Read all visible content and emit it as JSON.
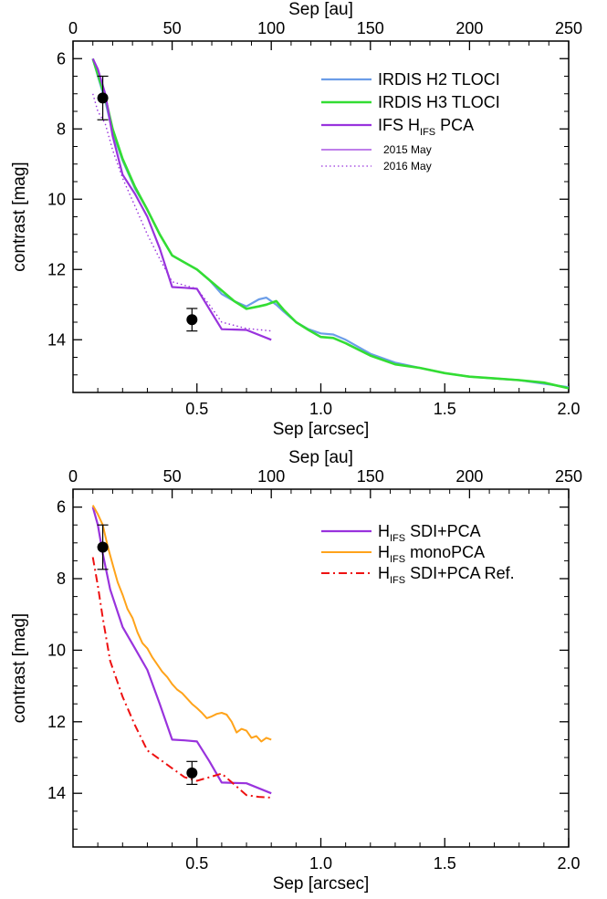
{
  "chart_data": [
    {
      "type": "line",
      "xlabel": "Sep [arcsec]",
      "ylabel": "contrast [mag]",
      "top_axis_label": "Sep [au]",
      "xlim": [
        0.0,
        2.0
      ],
      "ylim": [
        15.5,
        5.5
      ],
      "top_xlim": [
        0,
        250
      ],
      "x_ticks": [
        {
          "v": 0.5,
          "t": "0.5"
        },
        {
          "v": 1.0,
          "t": "1.0"
        },
        {
          "v": 1.5,
          "t": "1.5"
        },
        {
          "v": 2.0,
          "t": "2.0"
        }
      ],
      "top_ticks": [
        {
          "v": 0,
          "t": "0"
        },
        {
          "v": 50,
          "t": "50"
        },
        {
          "v": 100,
          "t": "100"
        },
        {
          "v": 150,
          "t": "150"
        },
        {
          "v": 200,
          "t": "200"
        },
        {
          "v": 250,
          "t": "250"
        }
      ],
      "y_ticks": [
        {
          "v": 6,
          "t": "6"
        },
        {
          "v": 8,
          "t": "8"
        },
        {
          "v": 10,
          "t": "10"
        },
        {
          "v": 12,
          "t": "12"
        },
        {
          "v": 14,
          "t": "14"
        }
      ],
      "legend_position": "top-right",
      "series": [
        {
          "name": "IRDIS H2 TLOCI",
          "legend": {
            "main": "IRDIS H2 TLOCI",
            "sub": "",
            "tail": ""
          },
          "color": "#6b9de8",
          "dash": "solid",
          "width": 2.2,
          "legend_size": "big",
          "points": [
            [
              0.08,
              6.0
            ],
            [
              0.1,
              6.5
            ],
            [
              0.13,
              7.2
            ],
            [
              0.16,
              8.1
            ],
            [
              0.2,
              8.9
            ],
            [
              0.25,
              9.7
            ],
            [
              0.3,
              10.3
            ],
            [
              0.35,
              11.0
            ],
            [
              0.4,
              11.6
            ],
            [
              0.45,
              11.8
            ],
            [
              0.5,
              12.0
            ],
            [
              0.55,
              12.3
            ],
            [
              0.6,
              12.7
            ],
            [
              0.65,
              12.9
            ],
            [
              0.7,
              13.05
            ],
            [
              0.75,
              12.85
            ],
            [
              0.78,
              12.8
            ],
            [
              0.82,
              13.0
            ],
            [
              0.85,
              13.2
            ],
            [
              0.9,
              13.5
            ],
            [
              0.95,
              13.7
            ],
            [
              1.0,
              13.82
            ],
            [
              1.05,
              13.85
            ],
            [
              1.1,
              14.0
            ],
            [
              1.2,
              14.4
            ],
            [
              1.3,
              14.65
            ],
            [
              1.4,
              14.8
            ],
            [
              1.5,
              14.95
            ],
            [
              1.6,
              15.05
            ],
            [
              1.7,
              15.1
            ],
            [
              1.8,
              15.15
            ],
            [
              1.9,
              15.25
            ],
            [
              1.95,
              15.3
            ],
            [
              2.0,
              15.35
            ]
          ]
        },
        {
          "name": "IRDIS H3 TLOCI",
          "legend": {
            "main": "IRDIS H3 TLOCI",
            "sub": "",
            "tail": ""
          },
          "color": "#33dd33",
          "dash": "solid",
          "width": 2.6,
          "legend_size": "big",
          "points": [
            [
              0.08,
              6.0
            ],
            [
              0.1,
              6.45
            ],
            [
              0.13,
              7.1
            ],
            [
              0.16,
              8.0
            ],
            [
              0.2,
              8.85
            ],
            [
              0.25,
              9.65
            ],
            [
              0.3,
              10.3
            ],
            [
              0.35,
              11.0
            ],
            [
              0.4,
              11.6
            ],
            [
              0.45,
              11.8
            ],
            [
              0.5,
              12.0
            ],
            [
              0.55,
              12.3
            ],
            [
              0.6,
              12.6
            ],
            [
              0.65,
              12.9
            ],
            [
              0.7,
              13.12
            ],
            [
              0.75,
              13.05
            ],
            [
              0.78,
              13.0
            ],
            [
              0.82,
              12.9
            ],
            [
              0.85,
              13.15
            ],
            [
              0.9,
              13.5
            ],
            [
              0.95,
              13.72
            ],
            [
              1.0,
              13.92
            ],
            [
              1.05,
              13.95
            ],
            [
              1.1,
              14.1
            ],
            [
              1.2,
              14.45
            ],
            [
              1.3,
              14.7
            ],
            [
              1.4,
              14.8
            ],
            [
              1.5,
              14.95
            ],
            [
              1.6,
              15.05
            ],
            [
              1.7,
              15.1
            ],
            [
              1.8,
              15.15
            ],
            [
              1.9,
              15.22
            ],
            [
              1.95,
              15.3
            ],
            [
              2.0,
              15.38
            ]
          ]
        },
        {
          "name": "IFS HIFS PCA",
          "legend": {
            "main": "IFS H",
            "sub": "IFS",
            "tail": " PCA"
          },
          "color": "#9933dd",
          "dash": "solid",
          "width": 2.2,
          "legend_size": "big",
          "points": [
            [
              0.08,
              6.0
            ],
            [
              0.1,
              6.3
            ],
            [
              0.13,
              7.0
            ],
            [
              0.16,
              8.2
            ],
            [
              0.2,
              9.3
            ],
            [
              0.25,
              9.85
            ],
            [
              0.3,
              10.5
            ],
            [
              0.35,
              11.4
            ],
            [
              0.4,
              12.5
            ],
            [
              0.45,
              12.52
            ],
            [
              0.5,
              12.55
            ],
            [
              0.6,
              13.7
            ],
            [
              0.7,
              13.72
            ],
            [
              0.8,
              14.0
            ]
          ]
        },
        {
          "name": "2015 May",
          "legend": {
            "main": "2015 May",
            "sub": "",
            "tail": ""
          },
          "color": "#9933dd",
          "dash": "solid",
          "width": 1.2,
          "legend_size": "small",
          "points": []
        },
        {
          "name": "2016 May",
          "legend": {
            "main": "2016 May",
            "sub": "",
            "tail": ""
          },
          "color": "#9933dd",
          "dash": "dotted",
          "width": 1.4,
          "legend_size": "small",
          "points": [
            [
              0.08,
              7.0
            ],
            [
              0.1,
              7.5
            ],
            [
              0.13,
              7.85
            ],
            [
              0.16,
              8.6
            ],
            [
              0.2,
              9.4
            ],
            [
              0.25,
              10.2
            ],
            [
              0.3,
              11.0
            ],
            [
              0.35,
              11.7
            ],
            [
              0.4,
              12.35
            ],
            [
              0.45,
              12.45
            ],
            [
              0.5,
              12.55
            ],
            [
              0.55,
              13.0
            ],
            [
              0.6,
              13.5
            ],
            [
              0.7,
              13.68
            ],
            [
              0.8,
              13.75
            ]
          ]
        }
      ],
      "markers": [
        {
          "x": 0.12,
          "y": 7.12,
          "err": 0.62
        },
        {
          "x": 0.48,
          "y": 13.43,
          "err": 0.32
        }
      ]
    },
    {
      "type": "line",
      "xlabel": "Sep [arcsec]",
      "ylabel": "contrast [mag]",
      "top_axis_label": "Sep [au]",
      "xlim": [
        0.0,
        2.0
      ],
      "ylim": [
        15.5,
        5.5
      ],
      "top_xlim": [
        0,
        250
      ],
      "x_ticks": [
        {
          "v": 0.5,
          "t": "0.5"
        },
        {
          "v": 1.0,
          "t": "1.0"
        },
        {
          "v": 1.5,
          "t": "1.5"
        },
        {
          "v": 2.0,
          "t": "2.0"
        }
      ],
      "top_ticks": [
        {
          "v": 0,
          "t": "0"
        },
        {
          "v": 50,
          "t": "50"
        },
        {
          "v": 100,
          "t": "100"
        },
        {
          "v": 150,
          "t": "150"
        },
        {
          "v": 200,
          "t": "200"
        },
        {
          "v": 250,
          "t": "250"
        }
      ],
      "y_ticks": [
        {
          "v": 6,
          "t": "6"
        },
        {
          "v": 8,
          "t": "8"
        },
        {
          "v": 10,
          "t": "10"
        },
        {
          "v": 12,
          "t": "12"
        },
        {
          "v": 14,
          "t": "14"
        }
      ],
      "legend_position": "top-right",
      "series": [
        {
          "name": "HIFS SDI+PCA",
          "legend": {
            "main": "H",
            "sub": "IFS",
            "tail": " SDI+PCA"
          },
          "color": "#9933dd",
          "dash": "solid",
          "width": 2.2,
          "legend_size": "big",
          "points": [
            [
              0.08,
              6.0
            ],
            [
              0.1,
              6.5
            ],
            [
              0.12,
              7.3
            ],
            [
              0.15,
              8.3
            ],
            [
              0.2,
              9.35
            ],
            [
              0.25,
              9.95
            ],
            [
              0.3,
              10.55
            ],
            [
              0.35,
              11.5
            ],
            [
              0.4,
              12.5
            ],
            [
              0.45,
              12.52
            ],
            [
              0.5,
              12.55
            ],
            [
              0.55,
              13.1
            ],
            [
              0.6,
              13.7
            ],
            [
              0.7,
              13.72
            ],
            [
              0.8,
              14.0
            ]
          ]
        },
        {
          "name": "HIFS monoPCA",
          "legend": {
            "main": "H",
            "sub": "IFS",
            "tail": " monoPCA"
          },
          "color": "#ffa31a",
          "dash": "solid",
          "width": 2.0,
          "legend_size": "big",
          "points": [
            [
              0.08,
              5.95
            ],
            [
              0.1,
              6.2
            ],
            [
              0.12,
              6.5
            ],
            [
              0.14,
              7.1
            ],
            [
              0.16,
              7.6
            ],
            [
              0.18,
              8.1
            ],
            [
              0.2,
              8.45
            ],
            [
              0.22,
              8.85
            ],
            [
              0.24,
              9.1
            ],
            [
              0.26,
              9.5
            ],
            [
              0.28,
              9.8
            ],
            [
              0.3,
              9.95
            ],
            [
              0.32,
              10.2
            ],
            [
              0.34,
              10.4
            ],
            [
              0.36,
              10.6
            ],
            [
              0.38,
              10.75
            ],
            [
              0.4,
              10.95
            ],
            [
              0.42,
              11.1
            ],
            [
              0.44,
              11.2
            ],
            [
              0.46,
              11.35
            ],
            [
              0.48,
              11.5
            ],
            [
              0.5,
              11.62
            ],
            [
              0.52,
              11.75
            ],
            [
              0.54,
              11.9
            ],
            [
              0.56,
              11.85
            ],
            [
              0.58,
              11.78
            ],
            [
              0.6,
              11.75
            ],
            [
              0.62,
              11.8
            ],
            [
              0.64,
              12.0
            ],
            [
              0.66,
              12.3
            ],
            [
              0.68,
              12.2
            ],
            [
              0.7,
              12.25
            ],
            [
              0.72,
              12.45
            ],
            [
              0.74,
              12.4
            ],
            [
              0.76,
              12.55
            ],
            [
              0.78,
              12.45
            ],
            [
              0.8,
              12.5
            ]
          ]
        },
        {
          "name": "HIFS SDI+PCA Ref.",
          "legend": {
            "main": "H",
            "sub": "IFS",
            "tail": " SDI+PCA Ref."
          },
          "color": "#ee1111",
          "dash": "dashdot",
          "width": 2.0,
          "legend_size": "big",
          "points": [
            [
              0.08,
              7.4
            ],
            [
              0.1,
              8.2
            ],
            [
              0.12,
              9.1
            ],
            [
              0.15,
              10.3
            ],
            [
              0.2,
              11.3
            ],
            [
              0.25,
              12.1
            ],
            [
              0.3,
              12.8
            ],
            [
              0.35,
              13.05
            ],
            [
              0.4,
              13.3
            ],
            [
              0.45,
              13.55
            ],
            [
              0.5,
              13.65
            ],
            [
              0.55,
              13.55
            ],
            [
              0.6,
              13.45
            ],
            [
              0.65,
              13.75
            ],
            [
              0.7,
              14.05
            ],
            [
              0.75,
              14.1
            ],
            [
              0.8,
              14.12
            ]
          ]
        }
      ],
      "markers": [
        {
          "x": 0.12,
          "y": 7.12,
          "err": 0.62
        },
        {
          "x": 0.48,
          "y": 13.43,
          "err": 0.32
        }
      ]
    }
  ]
}
